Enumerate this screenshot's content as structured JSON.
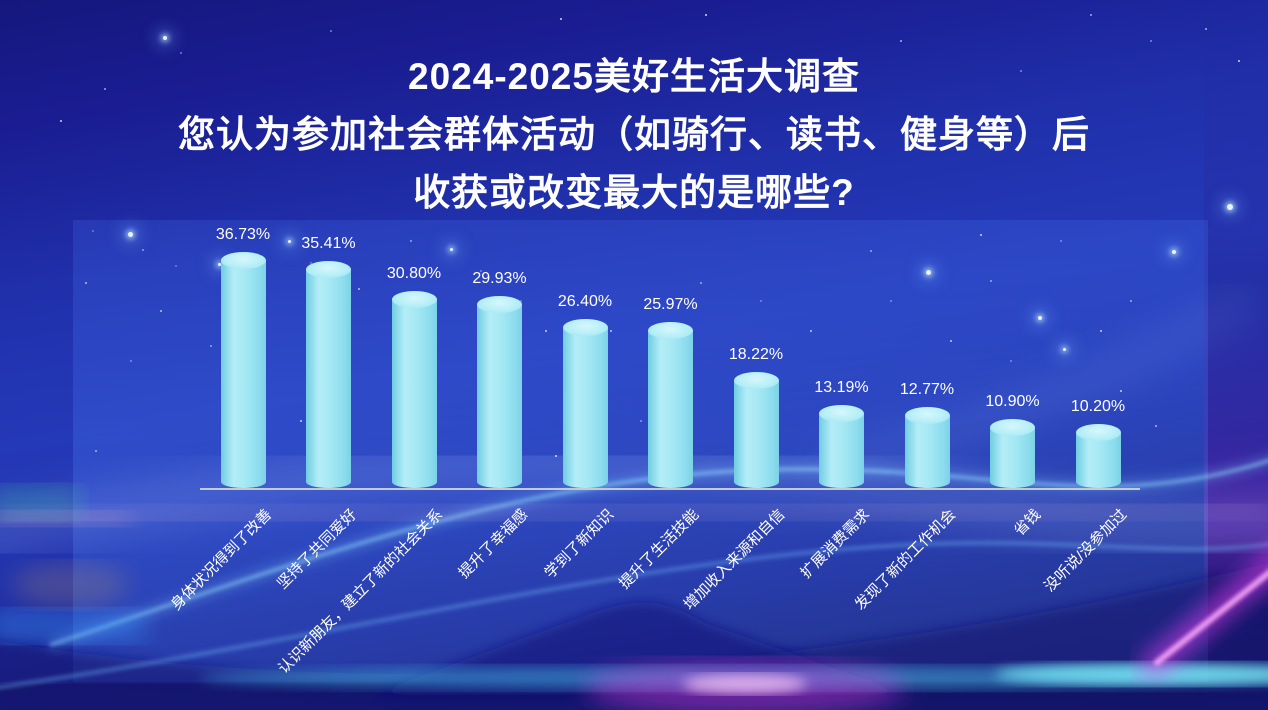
{
  "header": {
    "line1": "2024-2025美好生活大调查",
    "line2": "您认为参加社会群体活动（如骑行、读书、健身等）后",
    "line3": "收获或改变最大的是哪些?"
  },
  "chart_data": {
    "type": "bar",
    "subtype": "cylinder-pictorial",
    "title": "2024-2025美好生活大调查",
    "subtitle": "您认为参加社会群体活动（如骑行、读书、健身等）后收获或改变最大的是哪些?",
    "categories": [
      "身体状况得到了改善",
      "坚持了共同爱好",
      "认识新朋友，建立了新的社会关系",
      "提升了幸福感",
      "学到了新知识",
      "提升了生活技能",
      "增加收入来源和自信",
      "扩展消费需求",
      "发现了新的工作机会",
      "省钱",
      "没听说/没参加过"
    ],
    "values": [
      36.73,
      35.41,
      30.8,
      29.93,
      26.4,
      25.97,
      18.22,
      13.19,
      12.77,
      10.9,
      10.2
    ],
    "value_labels": [
      "36.73%",
      "35.41%",
      "30.80%",
      "29.93%",
      "26.40%",
      "25.97%",
      "18.22%",
      "13.19%",
      "12.77%",
      "10.90%",
      "10.20%"
    ],
    "unit": "%",
    "ylim": [
      0,
      40
    ],
    "grid": false,
    "legend_position": "none",
    "category_label_rotation_deg": 45,
    "colors": {
      "bar_light": "#b4edf7",
      "bar_dark": "#7bd2e6",
      "value_label": "#ffffff",
      "category_label": "#ffffff",
      "axis_line": "#c4c9d6",
      "title_text": "#ffffff",
      "panel_accent": "#2742c2",
      "background_top": "#191b8e",
      "background_mid": "#2439b8",
      "accent_magenta": "#e03cf0",
      "accent_cyan": "#50e6ff"
    }
  }
}
